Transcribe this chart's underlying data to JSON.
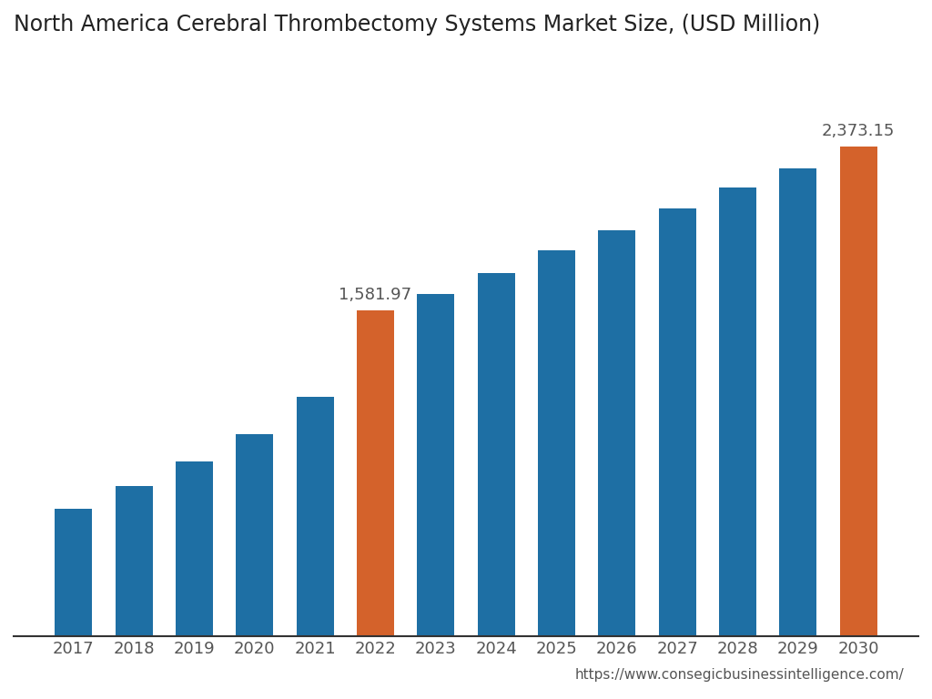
{
  "years": [
    "2017",
    "2018",
    "2019",
    "2020",
    "2021",
    "2022",
    "2023",
    "2024",
    "2025",
    "2026",
    "2027",
    "2028",
    "2029",
    "2030"
  ],
  "values": [
    620,
    730,
    850,
    980,
    1160,
    1581.97,
    1660,
    1760,
    1870,
    1970,
    2075,
    2175,
    2270,
    2373.15
  ],
  "colors": [
    "#1e6fa4",
    "#1e6fa4",
    "#1e6fa4",
    "#1e6fa4",
    "#1e6fa4",
    "#d4622b",
    "#1e6fa4",
    "#1e6fa4",
    "#1e6fa4",
    "#1e6fa4",
    "#1e6fa4",
    "#1e6fa4",
    "#1e6fa4",
    "#d4622b"
  ],
  "title": "North America Cerebral Thrombectomy Systems Market Size, (USD Million)",
  "annotate_2022": "1,581.97",
  "annotate_2030": "2,373.15",
  "url": "https://www.consegicbusinessintelligence.com/",
  "title_fontsize": 17,
  "label_fontsize": 13,
  "annotation_fontsize": 13,
  "url_fontsize": 11,
  "bar_width": 0.62,
  "ylim": [
    0,
    2800
  ],
  "background_color": "#ffffff",
  "spine_color": "#333333",
  "text_color": "#555555",
  "title_color": "#222222"
}
